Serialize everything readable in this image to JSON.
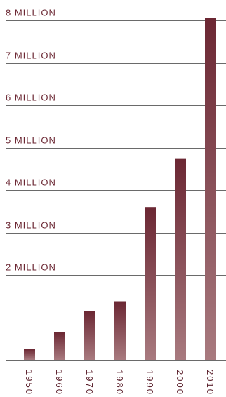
{
  "chart_data": {
    "type": "bar",
    "title": "",
    "xlabel": "",
    "ylabel": "",
    "categories": [
      "1950",
      "1960",
      "1970",
      "1980",
      "1990",
      "2000",
      "2010"
    ],
    "values": [
      0.25,
      0.65,
      1.15,
      1.38,
      3.6,
      4.75,
      8.05
    ],
    "ylim": [
      0,
      8
    ],
    "yticks": [
      {
        "value": 0,
        "label": ""
      },
      {
        "value": 1,
        "label": ""
      },
      {
        "value": 2,
        "label": "2 MILLION"
      },
      {
        "value": 3,
        "label": "3 MILLION"
      },
      {
        "value": 4,
        "label": "4 MILLION"
      },
      {
        "value": 5,
        "label": "5 MILLION"
      },
      {
        "value": 6,
        "label": "6 MILLION"
      },
      {
        "value": 7,
        "label": "7 MILLION"
      },
      {
        "value": 8,
        "label": "8 MILLION"
      }
    ],
    "grid": true,
    "colors": {
      "bar_top": "#6b2733",
      "bar_bottom": "#a87a7f",
      "label": "#6b2733",
      "grid": "#6a6a6a"
    }
  }
}
